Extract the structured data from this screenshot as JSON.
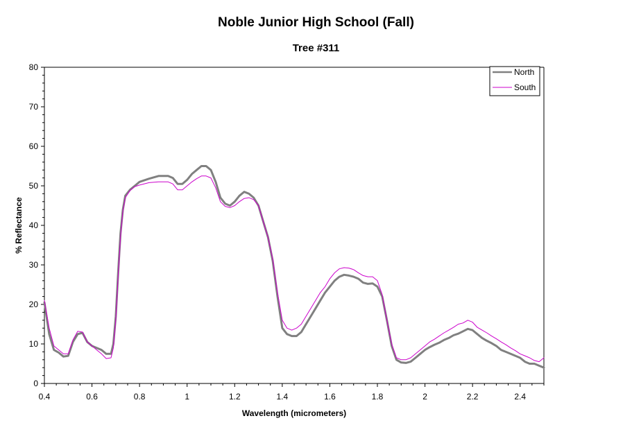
{
  "chart_data": {
    "type": "line",
    "title": "Noble Junior High School (Fall)",
    "subtitle": "Tree #311",
    "xlabel": "Wavelength (micrometers)",
    "ylabel": "% Reflectance",
    "xlim": [
      0.4,
      2.5
    ],
    "ylim": [
      0,
      80
    ],
    "x_ticks": [
      0.4,
      0.6,
      0.8,
      1,
      1.2,
      1.4,
      1.6,
      1.8,
      2,
      2.2,
      2.4
    ],
    "x_tick_labels": [
      "0.4",
      "0.6",
      "0.8",
      "1",
      "1.2",
      "1.4",
      "1.6",
      "1.8",
      "2",
      "2.2",
      "2.4"
    ],
    "y_ticks": [
      0,
      10,
      20,
      30,
      40,
      50,
      60,
      70,
      80
    ],
    "y_tick_labels": [
      "0",
      "10",
      "20",
      "30",
      "40",
      "50",
      "60",
      "70",
      "80"
    ],
    "grid": false,
    "legend_position": "top-right",
    "series": [
      {
        "name": "North",
        "color": "#808080",
        "points": [
          [
            0.4,
            20.5
          ],
          [
            0.42,
            12.5
          ],
          [
            0.44,
            8.5
          ],
          [
            0.46,
            7.8
          ],
          [
            0.48,
            6.8
          ],
          [
            0.5,
            7.0
          ],
          [
            0.52,
            10.5
          ],
          [
            0.54,
            12.5
          ],
          [
            0.56,
            12.8
          ],
          [
            0.58,
            10.5
          ],
          [
            0.6,
            9.5
          ],
          [
            0.62,
            9.0
          ],
          [
            0.64,
            8.5
          ],
          [
            0.66,
            7.5
          ],
          [
            0.68,
            7.5
          ],
          [
            0.69,
            10.0
          ],
          [
            0.7,
            17.0
          ],
          [
            0.71,
            28.0
          ],
          [
            0.72,
            38.0
          ],
          [
            0.73,
            44.0
          ],
          [
            0.74,
            47.5
          ],
          [
            0.76,
            49.0
          ],
          [
            0.78,
            50.0
          ],
          [
            0.8,
            51.0
          ],
          [
            0.84,
            51.8
          ],
          [
            0.88,
            52.5
          ],
          [
            0.92,
            52.5
          ],
          [
            0.94,
            52.0
          ],
          [
            0.96,
            50.5
          ],
          [
            0.98,
            50.5
          ],
          [
            1.0,
            51.5
          ],
          [
            1.02,
            53.0
          ],
          [
            1.04,
            54.0
          ],
          [
            1.06,
            55.0
          ],
          [
            1.08,
            55.0
          ],
          [
            1.1,
            54.0
          ],
          [
            1.12,
            51.0
          ],
          [
            1.14,
            47.0
          ],
          [
            1.16,
            45.5
          ],
          [
            1.18,
            45.0
          ],
          [
            1.2,
            46.0
          ],
          [
            1.22,
            47.5
          ],
          [
            1.24,
            48.5
          ],
          [
            1.26,
            48.0
          ],
          [
            1.28,
            47.0
          ],
          [
            1.3,
            45.0
          ],
          [
            1.32,
            41.0
          ],
          [
            1.34,
            37.0
          ],
          [
            1.36,
            31.0
          ],
          [
            1.38,
            22.0
          ],
          [
            1.4,
            14.0
          ],
          [
            1.42,
            12.5
          ],
          [
            1.44,
            12.0
          ],
          [
            1.46,
            12.0
          ],
          [
            1.48,
            13.0
          ],
          [
            1.5,
            15.0
          ],
          [
            1.52,
            17.0
          ],
          [
            1.54,
            19.0
          ],
          [
            1.56,
            21.0
          ],
          [
            1.58,
            23.0
          ],
          [
            1.6,
            24.5
          ],
          [
            1.62,
            26.0
          ],
          [
            1.64,
            27.0
          ],
          [
            1.66,
            27.5
          ],
          [
            1.68,
            27.3
          ],
          [
            1.7,
            27.0
          ],
          [
            1.72,
            26.5
          ],
          [
            1.74,
            25.5
          ],
          [
            1.76,
            25.2
          ],
          [
            1.78,
            25.3
          ],
          [
            1.8,
            24.5
          ],
          [
            1.82,
            22.0
          ],
          [
            1.84,
            16.0
          ],
          [
            1.86,
            9.5
          ],
          [
            1.88,
            6.0
          ],
          [
            1.9,
            5.3
          ],
          [
            1.92,
            5.2
          ],
          [
            1.94,
            5.5
          ],
          [
            1.96,
            6.5
          ],
          [
            1.98,
            7.5
          ],
          [
            2.0,
            8.5
          ],
          [
            2.02,
            9.2
          ],
          [
            2.04,
            9.8
          ],
          [
            2.06,
            10.3
          ],
          [
            2.08,
            11.0
          ],
          [
            2.1,
            11.5
          ],
          [
            2.12,
            12.2
          ],
          [
            2.14,
            12.6
          ],
          [
            2.16,
            13.2
          ],
          [
            2.18,
            13.8
          ],
          [
            2.2,
            13.5
          ],
          [
            2.22,
            12.5
          ],
          [
            2.24,
            11.5
          ],
          [
            2.26,
            10.8
          ],
          [
            2.28,
            10.2
          ],
          [
            2.3,
            9.5
          ],
          [
            2.32,
            8.5
          ],
          [
            2.34,
            8.0
          ],
          [
            2.36,
            7.5
          ],
          [
            2.38,
            7.0
          ],
          [
            2.4,
            6.5
          ],
          [
            2.42,
            5.5
          ],
          [
            2.44,
            5.0
          ],
          [
            2.46,
            5.0
          ],
          [
            2.48,
            4.5
          ],
          [
            2.5,
            4.0
          ]
        ]
      },
      {
        "name": "South",
        "color": "#cc00cc",
        "points": [
          [
            0.4,
            21.0
          ],
          [
            0.42,
            14.0
          ],
          [
            0.44,
            9.5
          ],
          [
            0.46,
            8.5
          ],
          [
            0.48,
            7.5
          ],
          [
            0.5,
            7.5
          ],
          [
            0.52,
            11.0
          ],
          [
            0.54,
            13.2
          ],
          [
            0.56,
            13.0
          ],
          [
            0.58,
            10.5
          ],
          [
            0.6,
            9.5
          ],
          [
            0.62,
            8.5
          ],
          [
            0.64,
            7.5
          ],
          [
            0.66,
            6.3
          ],
          [
            0.68,
            6.5
          ],
          [
            0.69,
            9.0
          ],
          [
            0.7,
            16.0
          ],
          [
            0.71,
            27.0
          ],
          [
            0.72,
            37.0
          ],
          [
            0.73,
            43.5
          ],
          [
            0.74,
            47.0
          ],
          [
            0.76,
            48.8
          ],
          [
            0.78,
            49.8
          ],
          [
            0.8,
            50.2
          ],
          [
            0.84,
            50.8
          ],
          [
            0.88,
            51.0
          ],
          [
            0.92,
            51.0
          ],
          [
            0.94,
            50.5
          ],
          [
            0.96,
            49.0
          ],
          [
            0.98,
            49.0
          ],
          [
            1.0,
            50.0
          ],
          [
            1.02,
            51.0
          ],
          [
            1.04,
            51.8
          ],
          [
            1.06,
            52.5
          ],
          [
            1.08,
            52.5
          ],
          [
            1.1,
            52.0
          ],
          [
            1.12,
            49.5
          ],
          [
            1.14,
            46.0
          ],
          [
            1.16,
            44.8
          ],
          [
            1.18,
            44.5
          ],
          [
            1.2,
            45.0
          ],
          [
            1.22,
            46.0
          ],
          [
            1.24,
            46.8
          ],
          [
            1.26,
            47.0
          ],
          [
            1.28,
            46.5
          ],
          [
            1.3,
            45.0
          ],
          [
            1.32,
            41.0
          ],
          [
            1.34,
            37.0
          ],
          [
            1.36,
            31.5
          ],
          [
            1.38,
            23.0
          ],
          [
            1.4,
            16.0
          ],
          [
            1.42,
            14.0
          ],
          [
            1.44,
            13.5
          ],
          [
            1.46,
            14.0
          ],
          [
            1.48,
            15.0
          ],
          [
            1.5,
            17.0
          ],
          [
            1.52,
            19.0
          ],
          [
            1.54,
            21.0
          ],
          [
            1.56,
            23.0
          ],
          [
            1.58,
            24.5
          ],
          [
            1.6,
            26.5
          ],
          [
            1.62,
            28.0
          ],
          [
            1.64,
            29.0
          ],
          [
            1.66,
            29.3
          ],
          [
            1.68,
            29.2
          ],
          [
            1.7,
            28.8
          ],
          [
            1.72,
            28.0
          ],
          [
            1.74,
            27.3
          ],
          [
            1.76,
            27.0
          ],
          [
            1.78,
            27.0
          ],
          [
            1.8,
            26.0
          ],
          [
            1.82,
            22.5
          ],
          [
            1.84,
            16.0
          ],
          [
            1.86,
            10.0
          ],
          [
            1.88,
            6.5
          ],
          [
            1.9,
            6.0
          ],
          [
            1.92,
            6.0
          ],
          [
            1.94,
            6.5
          ],
          [
            1.96,
            7.5
          ],
          [
            1.98,
            8.5
          ],
          [
            2.0,
            9.5
          ],
          [
            2.02,
            10.5
          ],
          [
            2.04,
            11.2
          ],
          [
            2.06,
            12.0
          ],
          [
            2.08,
            12.8
          ],
          [
            2.1,
            13.5
          ],
          [
            2.12,
            14.2
          ],
          [
            2.14,
            15.0
          ],
          [
            2.16,
            15.3
          ],
          [
            2.18,
            16.0
          ],
          [
            2.2,
            15.5
          ],
          [
            2.22,
            14.2
          ],
          [
            2.24,
            13.5
          ],
          [
            2.26,
            12.8
          ],
          [
            2.28,
            12.0
          ],
          [
            2.3,
            11.3
          ],
          [
            2.32,
            10.5
          ],
          [
            2.34,
            9.8
          ],
          [
            2.36,
            9.0
          ],
          [
            2.38,
            8.3
          ],
          [
            2.4,
            7.5
          ],
          [
            2.42,
            7.0
          ],
          [
            2.44,
            6.5
          ],
          [
            2.46,
            5.8
          ],
          [
            2.48,
            5.5
          ],
          [
            2.5,
            6.5
          ]
        ]
      }
    ]
  }
}
